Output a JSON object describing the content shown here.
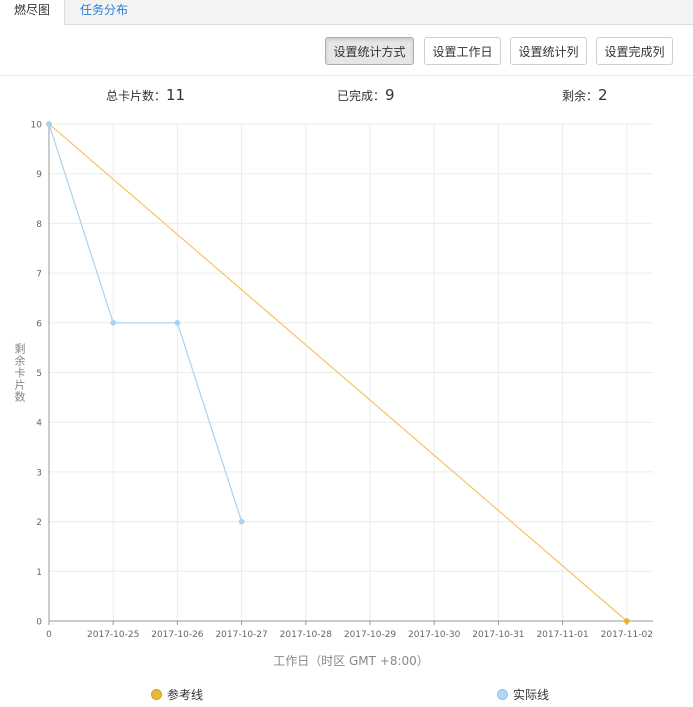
{
  "tabs": [
    {
      "label": "燃尽图",
      "active": true
    },
    {
      "label": "任务分布",
      "active": false
    }
  ],
  "toolbar": {
    "buttons": [
      {
        "label": "设置统计方式",
        "pressed": true
      },
      {
        "label": "设置工作日",
        "pressed": false
      },
      {
        "label": "设置统计列",
        "pressed": false
      },
      {
        "label": "设置完成列",
        "pressed": false
      }
    ]
  },
  "stats": {
    "total_label": "总卡片数：",
    "total_value": "11",
    "done_label": "已完成：",
    "done_value": "9",
    "remaining_label": "剩余：",
    "remaining_value": "2"
  },
  "chart_data": {
    "type": "line",
    "title": "",
    "xlabel": "工作日（时区 GMT +8:00）",
    "ylabel": "剩余卡片数",
    "categories": [
      "0",
      "2017-10-25",
      "2017-10-26",
      "2017-10-27",
      "2017-10-28",
      "2017-10-29",
      "2017-10-30",
      "2017-10-31",
      "2017-11-01",
      "2017-11-02"
    ],
    "ylim": [
      0,
      10
    ],
    "yticks": [
      0,
      1,
      2,
      3,
      4,
      5,
      6,
      7,
      8,
      9,
      10
    ],
    "grid": true,
    "legend_position": "bottom",
    "series": [
      {
        "name": "参考线",
        "color": "#f5c563",
        "marker_color": "#e3b22a",
        "values": [
          10,
          null,
          null,
          null,
          null,
          null,
          null,
          null,
          null,
          0
        ]
      },
      {
        "name": "实际线",
        "color": "#a9d2f0",
        "marker_color": "#a9d2f0",
        "values": [
          10,
          6,
          6,
          2,
          null,
          null,
          null,
          null,
          null,
          null
        ]
      }
    ]
  }
}
